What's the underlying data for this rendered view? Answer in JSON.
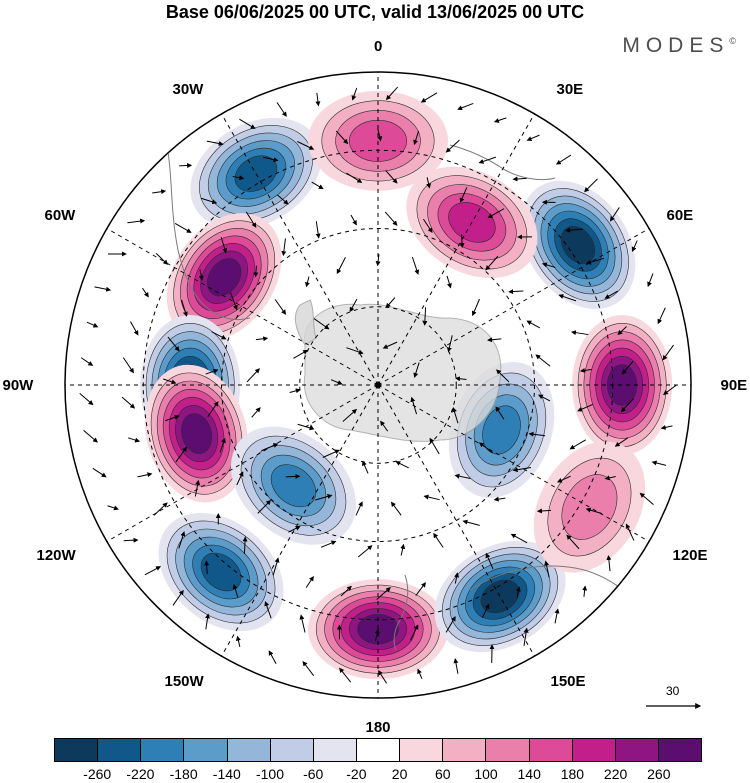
{
  "title": "Base 06/06/2025 00 UTC, valid 13/06/2025 00 UTC",
  "brand": "MODES",
  "brand_mark": "©",
  "longitude_labels": [
    "0",
    "30E",
    "60E",
    "90E",
    "120E",
    "150E",
    "180",
    "150W",
    "120W",
    "90W",
    "60W",
    "30W"
  ],
  "reference_vector": {
    "label": "30"
  },
  "colorbar": {
    "labels": [
      "-260",
      "-220",
      "-180",
      "-140",
      "-100",
      "-60",
      "-20",
      "20",
      "60",
      "100",
      "140",
      "180",
      "220",
      "260"
    ],
    "colors": [
      "#0d3a5c",
      "#10588a",
      "#2e7fb5",
      "#5b9ccb",
      "#93b6d9",
      "#c1cde6",
      "#e4e4f0",
      "#ffffff",
      "#f9d7de",
      "#f3b0c5",
      "#ea7fac",
      "#dc4a98",
      "#c21f8a",
      "#8f1583",
      "#5c0e70"
    ]
  },
  "anomaly_centers": [
    {
      "id": "neg-1",
      "sign": "negative",
      "level": 180,
      "lon_hint": "30W",
      "ring": "outer"
    },
    {
      "id": "pos-1",
      "sign": "positive",
      "level": 260,
      "lon_hint": "55W",
      "ring": "mid"
    },
    {
      "id": "neg-2",
      "sign": "negative",
      "level": 220,
      "lon_hint": "90W",
      "ring": "mid"
    },
    {
      "id": "pos-2",
      "sign": "positive",
      "level": 260,
      "lon_hint": "105W",
      "ring": "mid"
    },
    {
      "id": "neg-3",
      "sign": "negative",
      "level": 140,
      "lon_hint": "140W",
      "ring": "inner"
    },
    {
      "id": "neg-4",
      "sign": "negative",
      "level": 180,
      "lon_hint": "140W",
      "ring": "outer"
    },
    {
      "id": "pos-3",
      "sign": "positive",
      "level": 260,
      "lon_hint": "180",
      "ring": "outer"
    },
    {
      "id": "neg-5",
      "sign": "negative",
      "level": 220,
      "lon_hint": "150E",
      "ring": "outer"
    },
    {
      "id": "neg-6",
      "sign": "negative",
      "level": 140,
      "lon_hint": "110E",
      "ring": "inner"
    },
    {
      "id": "pos-4",
      "sign": "positive",
      "level": 220,
      "lon_hint": "90E",
      "ring": "outer"
    },
    {
      "id": "neg-7",
      "sign": "negative",
      "level": 220,
      "lon_hint": "55E",
      "ring": "outer"
    },
    {
      "id": "pos-5",
      "sign": "positive",
      "level": 140,
      "lon_hint": "30E",
      "ring": "mid"
    },
    {
      "id": "pos-6",
      "sign": "positive",
      "level": 100,
      "lon_hint": "0",
      "ring": "outer"
    },
    {
      "id": "pos-7",
      "sign": "positive",
      "level": 60,
      "lon_hint": "120E",
      "ring": "outer"
    }
  ]
}
